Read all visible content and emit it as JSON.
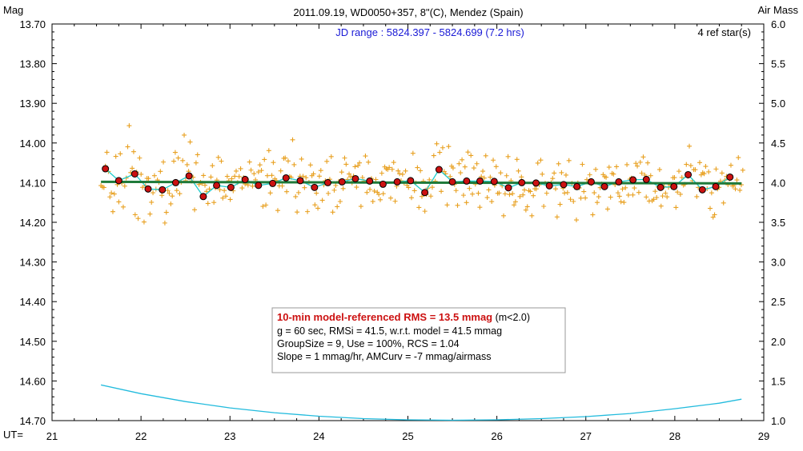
{
  "chart_data": {
    "type": "scatter",
    "title": "2011.09.19, WD0050+357, 8\"(C), Mendez (Spain)",
    "left_axis_label": "Mag",
    "right_axis_label": "Air Mass",
    "x_axis_prefix": "UT=",
    "jd_range": "JD range : 5824.397 - 5824.699 (7.2 hrs)",
    "ref_stars": "4 ref star(s)",
    "xlim": [
      21,
      29
    ],
    "ylim": [
      13.7,
      14.7
    ],
    "y_reversed": true,
    "y2lim": [
      1.0,
      6.0
    ],
    "x_ticks": [
      "21",
      "22",
      "23",
      "24",
      "25",
      "26",
      "27",
      "28",
      "29"
    ],
    "y_ticks": [
      "13.70",
      "13.80",
      "13.90",
      "14.00",
      "14.10",
      "14.20",
      "14.30",
      "14.40",
      "14.50",
      "14.60",
      "14.70"
    ],
    "y2_ticks": [
      "6.0",
      "5.5",
      "5.0",
      "4.5",
      "4.0",
      "3.5",
      "3.0",
      "2.5",
      "2.0",
      "1.5",
      "1.0"
    ],
    "info_box": {
      "line1_bold": "10-min model-referenced RMS = 13.5 mmag",
      "line1_suffix": " (m<2.0)",
      "line2": "g = 60 sec, RMSi = 41.5, w.r.t. model = 41.5 mmag",
      "line3": "GroupSize = 9, Use = 100%, RCS = 1.04",
      "line4": "Slope = 1 mmag/hr, AMCurv = -7 mmag/airmass"
    },
    "colors": {
      "raw_points": "#e8a020",
      "group_points_fill": "#cc1111",
      "group_points_edge": "#000000",
      "model_line": "#1f7a3a",
      "smooth_line": "#22cccc",
      "airmass_curve": "#22bbdd"
    },
    "group_points": [
      {
        "x": 21.6,
        "y": 14.065
      },
      {
        "x": 21.75,
        "y": 14.095
      },
      {
        "x": 21.93,
        "y": 14.078
      },
      {
        "x": 22.08,
        "y": 14.116
      },
      {
        "x": 22.24,
        "y": 14.118
      },
      {
        "x": 22.39,
        "y": 14.1
      },
      {
        "x": 22.54,
        "y": 14.083
      },
      {
        "x": 22.7,
        "y": 14.135
      },
      {
        "x": 22.85,
        "y": 14.107
      },
      {
        "x": 23.01,
        "y": 14.112
      },
      {
        "x": 23.17,
        "y": 14.092
      },
      {
        "x": 23.32,
        "y": 14.107
      },
      {
        "x": 23.48,
        "y": 14.102
      },
      {
        "x": 23.63,
        "y": 14.088
      },
      {
        "x": 23.79,
        "y": 14.095
      },
      {
        "x": 23.95,
        "y": 14.112
      },
      {
        "x": 24.1,
        "y": 14.1
      },
      {
        "x": 24.26,
        "y": 14.098
      },
      {
        "x": 24.41,
        "y": 14.09
      },
      {
        "x": 24.57,
        "y": 14.096
      },
      {
        "x": 24.72,
        "y": 14.104
      },
      {
        "x": 24.88,
        "y": 14.098
      },
      {
        "x": 25.03,
        "y": 14.095
      },
      {
        "x": 25.19,
        "y": 14.125
      },
      {
        "x": 25.35,
        "y": 14.067
      },
      {
        "x": 25.5,
        "y": 14.098
      },
      {
        "x": 25.66,
        "y": 14.096
      },
      {
        "x": 25.81,
        "y": 14.096
      },
      {
        "x": 25.97,
        "y": 14.097
      },
      {
        "x": 26.13,
        "y": 14.113
      },
      {
        "x": 26.28,
        "y": 14.1
      },
      {
        "x": 26.44,
        "y": 14.101
      },
      {
        "x": 26.59,
        "y": 14.108
      },
      {
        "x": 26.75,
        "y": 14.105
      },
      {
        "x": 26.9,
        "y": 14.11
      },
      {
        "x": 27.06,
        "y": 14.098
      },
      {
        "x": 27.21,
        "y": 14.11
      },
      {
        "x": 27.37,
        "y": 14.098
      },
      {
        "x": 27.53,
        "y": 14.093
      },
      {
        "x": 27.68,
        "y": 14.092
      },
      {
        "x": 27.84,
        "y": 14.112
      },
      {
        "x": 27.99,
        "y": 14.11
      },
      {
        "x": 28.15,
        "y": 14.08
      },
      {
        "x": 28.31,
        "y": 14.118
      },
      {
        "x": 28.46,
        "y": 14.11
      },
      {
        "x": 28.62,
        "y": 14.086
      }
    ],
    "model_line": [
      {
        "x": 21.55,
        "y": 14.098
      },
      {
        "x": 28.75,
        "y": 14.102
      }
    ],
    "airmass_curve": [
      {
        "x": 21.55,
        "y": 1.45
      },
      {
        "x": 22.0,
        "y": 1.34
      },
      {
        "x": 22.5,
        "y": 1.24
      },
      {
        "x": 23.0,
        "y": 1.16
      },
      {
        "x": 23.5,
        "y": 1.1
      },
      {
        "x": 24.0,
        "y": 1.055
      },
      {
        "x": 24.5,
        "y": 1.025
      },
      {
        "x": 25.0,
        "y": 1.01
      },
      {
        "x": 25.5,
        "y": 1.005
      },
      {
        "x": 26.0,
        "y": 1.01
      },
      {
        "x": 26.5,
        "y": 1.025
      },
      {
        "x": 27.0,
        "y": 1.05
      },
      {
        "x": 27.5,
        "y": 1.09
      },
      {
        "x": 28.0,
        "y": 1.15
      },
      {
        "x": 28.5,
        "y": 1.22
      },
      {
        "x": 28.75,
        "y": 1.27
      }
    ]
  }
}
